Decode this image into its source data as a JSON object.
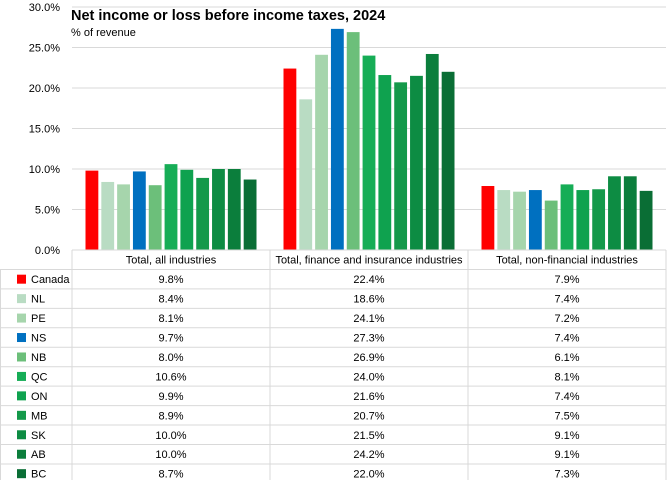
{
  "chart_data": {
    "type": "bar",
    "title": "Net income or loss before income taxes, 2024",
    "subtitle": "% of revenue",
    "ylim": [
      0,
      30
    ],
    "yticks": [
      "0.0%",
      "5.0%",
      "10.0%",
      "15.0%",
      "20.0%",
      "25.0%",
      "30.0%"
    ],
    "grid": true,
    "legend": "data-table",
    "categories": [
      "Total, all industries",
      "Total, finance and insurance industries",
      "Total, non-financial industries"
    ],
    "series": [
      {
        "name": "Canada",
        "color": "#ff0000",
        "values": [
          9.8,
          22.4,
          7.9
        ],
        "labels": [
          "9.8%",
          "22.4%",
          "7.9%"
        ]
      },
      {
        "name": "NL",
        "color": "#b9dcc3",
        "values": [
          8.4,
          18.6,
          7.4
        ],
        "labels": [
          "8.4%",
          "18.6%",
          "7.4%"
        ]
      },
      {
        "name": "PE",
        "color": "#a6d5ac",
        "values": [
          8.1,
          24.1,
          7.2
        ],
        "labels": [
          "8.1%",
          "24.1%",
          "7.2%"
        ]
      },
      {
        "name": "NS",
        "color": "#0070c0",
        "values": [
          9.7,
          27.3,
          7.4
        ],
        "labels": [
          "9.7%",
          "27.3%",
          "7.4%"
        ]
      },
      {
        "name": "NB",
        "color": "#6cbf7a",
        "values": [
          8.0,
          26.9,
          6.1
        ],
        "labels": [
          "8.0%",
          "26.9%",
          "6.1%"
        ]
      },
      {
        "name": "QC",
        "color": "#16ad56",
        "values": [
          10.6,
          24.0,
          8.1
        ],
        "labels": [
          "10.6%",
          "24.0%",
          "8.1%"
        ]
      },
      {
        "name": "ON",
        "color": "#0fa24f",
        "values": [
          9.9,
          21.6,
          7.4
        ],
        "labels": [
          "9.9%",
          "21.6%",
          "7.4%"
        ]
      },
      {
        "name": "MB",
        "color": "#14994a",
        "values": [
          8.9,
          20.7,
          7.5
        ],
        "labels": [
          "8.9%",
          "20.7%",
          "7.5%"
        ]
      },
      {
        "name": "SK",
        "color": "#0d8c43",
        "values": [
          10.0,
          21.5,
          9.1
        ],
        "labels": [
          "10.0%",
          "21.5%",
          "9.1%"
        ]
      },
      {
        "name": "AB",
        "color": "#0b7e3c",
        "values": [
          10.0,
          24.2,
          9.1
        ],
        "labels": [
          "10.0%",
          "24.2%",
          "9.1%"
        ]
      },
      {
        "name": "BC",
        "color": "#0a6e35",
        "values": [
          8.7,
          22.0,
          7.3
        ],
        "labels": [
          "8.7%",
          "22.0%",
          "7.3%"
        ]
      }
    ]
  }
}
